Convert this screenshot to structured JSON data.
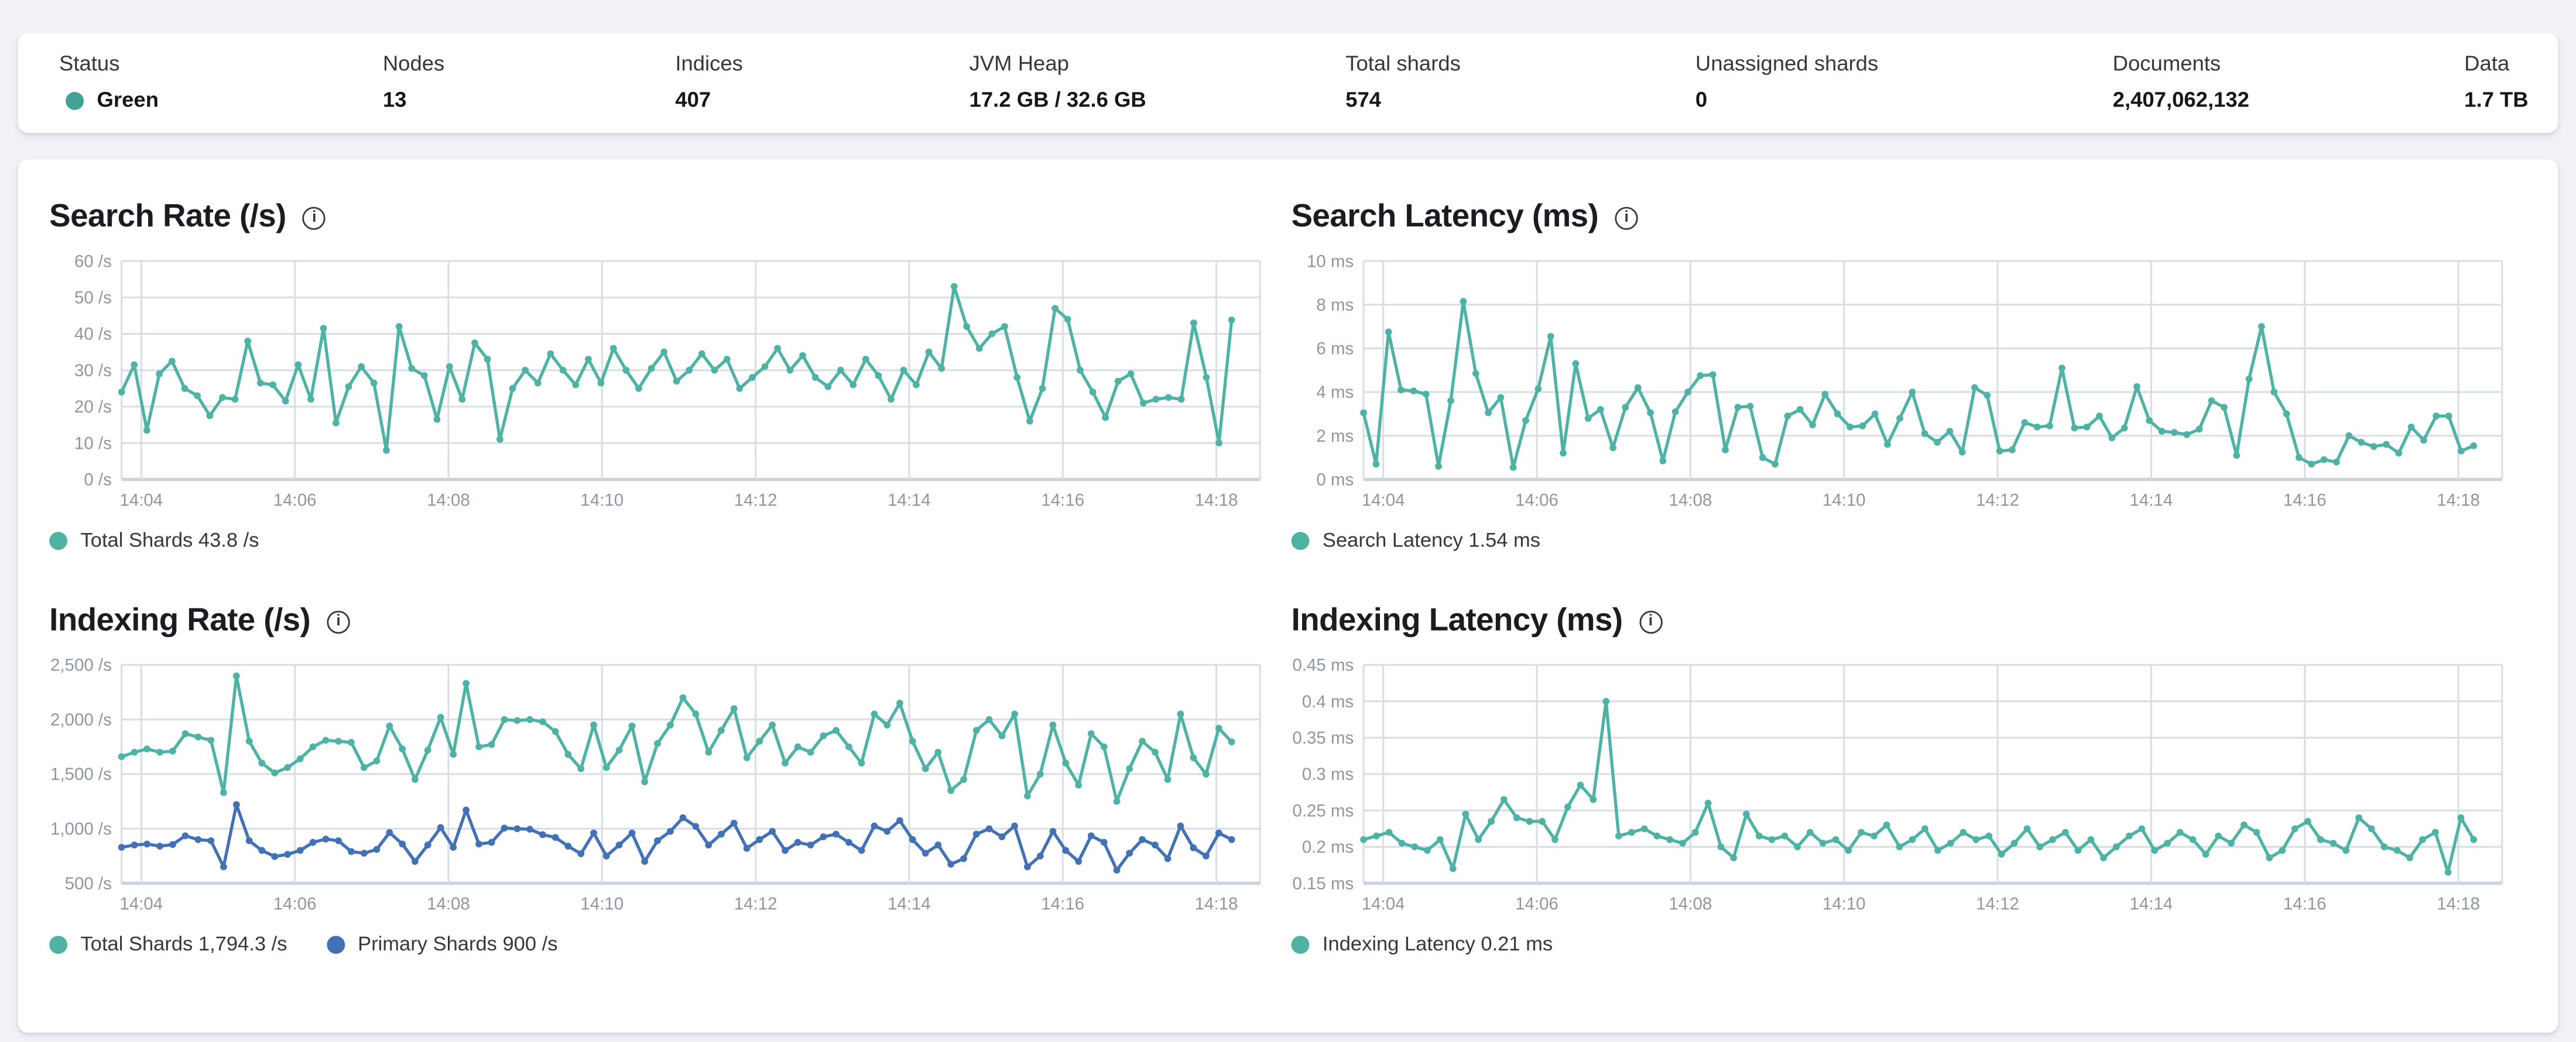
{
  "overview": {
    "stats": [
      {
        "label": "Status",
        "value": "Green",
        "dot_color": "status_green"
      },
      {
        "label": "Nodes",
        "value": "13"
      },
      {
        "label": "Indices",
        "value": "407"
      },
      {
        "label": "JVM Heap",
        "value": "17.2 GB / 32.6 GB"
      },
      {
        "label": "Total shards",
        "value": "574"
      },
      {
        "label": "Unassigned shards",
        "value": "0"
      },
      {
        "label": "Documents",
        "value": "2,407,062,132"
      },
      {
        "label": "Data",
        "value": "1.7 TB"
      }
    ]
  },
  "icons": {
    "info": "i"
  },
  "colors": {
    "teal": "#4eb3a4",
    "blue": "#4272b5",
    "status_green": "#43a296",
    "grid": "#d9dde5",
    "axis_bottom": "#cdd3de",
    "axis_text": "#8f96a3",
    "title_text": "#1a1c21",
    "body_text": "#343741"
  },
  "chart_data": [
    {
      "id": "search_rate",
      "type": "line",
      "title": "Search Rate (/s)",
      "ylabel": "/s",
      "y_min": 0,
      "y_max": 60,
      "y_tick_labels": [
        "60 /s",
        "50 /s",
        "40 /s",
        "30 /s",
        "20 /s",
        "10 /s",
        "0 /s"
      ],
      "x_labels": [
        "14:04",
        "14:06",
        "14:08",
        "14:10",
        "14:12",
        "14:14",
        "14:16",
        "14:18"
      ],
      "legend": [
        {
          "label": "Total Shards 43.8 /s",
          "color": "teal"
        }
      ],
      "series": [
        {
          "name": "Total Shards",
          "color": "teal",
          "values": [
            24,
            31.5,
            13.5,
            29,
            32.5,
            25,
            23,
            17.5,
            22.5,
            22,
            38,
            26.5,
            26,
            21.5,
            31.5,
            22,
            41.5,
            15.5,
            25.5,
            31,
            26.5,
            8,
            42,
            30.5,
            28.5,
            16.5,
            31,
            22,
            37.5,
            33,
            11,
            25,
            30,
            26.5,
            34.5,
            30,
            26,
            33,
            26.5,
            36,
            30,
            25,
            30.5,
            35,
            27,
            30,
            34.5,
            30,
            33,
            25,
            28,
            31,
            36,
            30,
            34,
            28,
            25.5,
            30,
            26,
            33,
            28.5,
            22,
            30,
            26,
            35,
            30.5,
            53,
            42,
            36,
            40,
            42,
            28,
            16,
            25,
            47,
            44,
            30,
            24,
            17,
            27,
            29,
            21,
            22,
            22.5,
            22,
            43,
            28,
            10,
            43.8
          ]
        }
      ]
    },
    {
      "id": "search_latency",
      "type": "line",
      "title": "Search Latency (ms)",
      "ylabel": "ms",
      "y_min": 0,
      "y_max": 10,
      "y_tick_labels": [
        "10 ms",
        "8 ms",
        "6 ms",
        "4 ms",
        "2 ms",
        "0 ms"
      ],
      "x_labels": [
        "14:04",
        "14:06",
        "14:08",
        "14:10",
        "14:12",
        "14:14",
        "14:16",
        "14:18"
      ],
      "legend": [
        {
          "label": "Search Latency 1.54 ms",
          "color": "teal"
        }
      ],
      "series": [
        {
          "name": "Search Latency",
          "color": "teal",
          "values": [
            3.05,
            0.7,
            6.75,
            4.1,
            4.05,
            3.9,
            0.6,
            3.6,
            8.15,
            4.85,
            3.05,
            3.75,
            0.55,
            2.7,
            4.15,
            6.55,
            1.2,
            5.3,
            2.8,
            3.2,
            1.45,
            3.3,
            4.2,
            3.05,
            0.85,
            3.1,
            4.0,
            4.75,
            4.8,
            1.35,
            3.3,
            3.35,
            1.0,
            0.7,
            2.9,
            3.2,
            2.5,
            3.9,
            3.0,
            2.4,
            2.45,
            3.0,
            1.6,
            2.8,
            4.0,
            2.1,
            1.7,
            2.2,
            1.25,
            4.2,
            3.85,
            1.3,
            1.35,
            2.6,
            2.4,
            2.45,
            5.1,
            2.35,
            2.4,
            2.9,
            1.9,
            2.35,
            4.25,
            2.7,
            2.2,
            2.15,
            2.05,
            2.3,
            3.6,
            3.3,
            1.1,
            4.6,
            7.0,
            4.0,
            3.0,
            1.0,
            0.7,
            0.9,
            0.8,
            2.0,
            1.7,
            1.5,
            1.6,
            1.2,
            2.4,
            1.8,
            2.9,
            2.9,
            1.3,
            1.54
          ]
        }
      ]
    },
    {
      "id": "indexing_rate",
      "type": "line",
      "title": "Indexing Rate (/s)",
      "ylabel": "/s",
      "y_min": 500,
      "y_max": 2500,
      "y_tick_labels": [
        "2,500 /s",
        "2,000 /s",
        "1,500 /s",
        "1,000 /s",
        "500 /s"
      ],
      "x_labels": [
        "14:04",
        "14:06",
        "14:08",
        "14:10",
        "14:12",
        "14:14",
        "14:16",
        "14:18"
      ],
      "legend": [
        {
          "label": "Total Shards 1,794.3 /s",
          "color": "teal"
        },
        {
          "label": "Primary Shards 900 /s",
          "color": "blue"
        }
      ],
      "series": [
        {
          "name": "Total Shards",
          "color": "teal",
          "values": [
            1660,
            1700,
            1730,
            1700,
            1710,
            1870,
            1840,
            1810,
            1330,
            2400,
            1800,
            1600,
            1510,
            1560,
            1640,
            1750,
            1810,
            1800,
            1790,
            1560,
            1620,
            1940,
            1730,
            1450,
            1720,
            2020,
            1680,
            2330,
            1750,
            1770,
            2000,
            1990,
            2000,
            1980,
            1890,
            1680,
            1550,
            1950,
            1560,
            1720,
            1940,
            1430,
            1780,
            1950,
            2200,
            2050,
            1700,
            1900,
            2100,
            1650,
            1800,
            1950,
            1600,
            1750,
            1700,
            1850,
            1900,
            1750,
            1600,
            2050,
            1950,
            2150,
            1800,
            1550,
            1700,
            1350,
            1450,
            1900,
            2000,
            1850,
            2050,
            1300,
            1500,
            1950,
            1600,
            1400,
            1870,
            1750,
            1250,
            1550,
            1800,
            1700,
            1450,
            2050,
            1650,
            1500,
            1920,
            1794.3
          ]
        },
        {
          "name": "Primary Shards",
          "color": "blue",
          "values": [
            830,
            850,
            860,
            840,
            855,
            935,
            900,
            890,
            650,
            1220,
            890,
            800,
            745,
            765,
            800,
            875,
            905,
            890,
            790,
            775,
            810,
            965,
            860,
            700,
            850,
            1010,
            830,
            1170,
            860,
            875,
            1005,
            1000,
            995,
            945,
            920,
            840,
            770,
            960,
            750,
            850,
            960,
            700,
            890,
            975,
            1100,
            1020,
            850,
            950,
            1050,
            820,
            900,
            975,
            800,
            875,
            850,
            925,
            950,
            875,
            800,
            1025,
            975,
            1075,
            900,
            775,
            850,
            675,
            725,
            950,
            1000,
            925,
            1025,
            650,
            750,
            975,
            800,
            700,
            935,
            875,
            620,
            775,
            900,
            850,
            725,
            1025,
            825,
            750,
            960,
            900
          ]
        }
      ]
    },
    {
      "id": "indexing_latency",
      "type": "line",
      "title": "Indexing Latency (ms)",
      "ylabel": "ms",
      "y_min": 0.15,
      "y_max": 0.45,
      "y_tick_labels": [
        "0.45 ms",
        "0.4 ms",
        "0.35 ms",
        "0.3 ms",
        "0.25 ms",
        "0.2 ms",
        "0.15 ms"
      ],
      "x_labels": [
        "14:04",
        "14:06",
        "14:08",
        "14:10",
        "14:12",
        "14:14",
        "14:16",
        "14:18"
      ],
      "legend": [
        {
          "label": "Indexing Latency 0.21 ms",
          "color": "teal"
        }
      ],
      "series": [
        {
          "name": "Indexing Latency",
          "color": "teal",
          "values": [
            0.21,
            0.215,
            0.22,
            0.205,
            0.2,
            0.195,
            0.21,
            0.17,
            0.245,
            0.21,
            0.235,
            0.265,
            0.24,
            0.235,
            0.235,
            0.21,
            0.255,
            0.285,
            0.265,
            0.4,
            0.215,
            0.22,
            0.225,
            0.215,
            0.21,
            0.205,
            0.22,
            0.26,
            0.2,
            0.185,
            0.245,
            0.215,
            0.21,
            0.215,
            0.2,
            0.22,
            0.205,
            0.21,
            0.195,
            0.22,
            0.215,
            0.23,
            0.2,
            0.21,
            0.225,
            0.195,
            0.205,
            0.22,
            0.21,
            0.215,
            0.19,
            0.205,
            0.225,
            0.2,
            0.21,
            0.22,
            0.195,
            0.21,
            0.185,
            0.2,
            0.215,
            0.225,
            0.195,
            0.205,
            0.22,
            0.21,
            0.19,
            0.215,
            0.205,
            0.23,
            0.22,
            0.185,
            0.195,
            0.225,
            0.235,
            0.21,
            0.205,
            0.195,
            0.24,
            0.225,
            0.2,
            0.195,
            0.185,
            0.21,
            0.22,
            0.165,
            0.24,
            0.21
          ]
        }
      ]
    }
  ]
}
